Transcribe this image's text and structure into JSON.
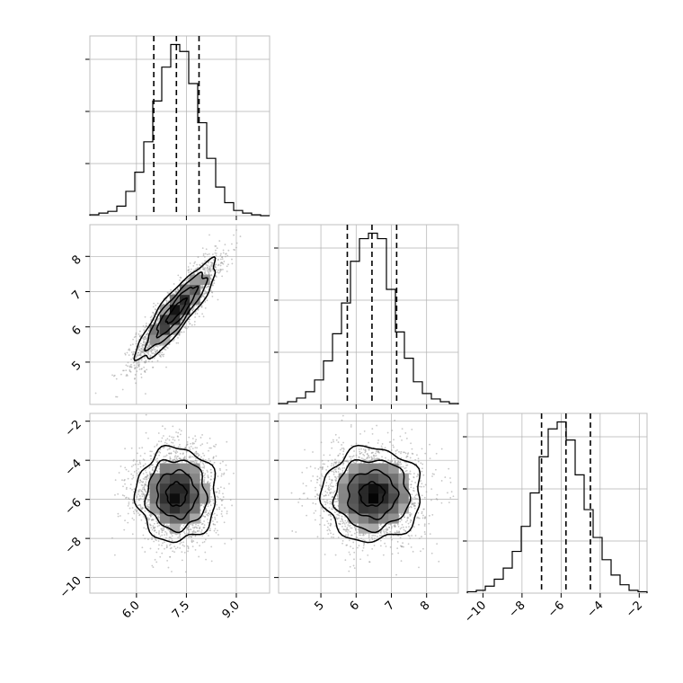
{
  "chart_data": {
    "type": "corner",
    "description": "Corner plot of three parameters: 1D marginal histograms on the diagonal with dashed quantile lines, 2D density histograms with scatter points and contours below the diagonal.",
    "parameters": [
      {
        "name": "",
        "range": [
          4.6,
          10.0
        ],
        "ticks": [
          6.0,
          7.5,
          9.0
        ],
        "tick_labels": [
          "6.0",
          "7.5",
          "9.0"
        ],
        "mean": 7.2,
        "sd": 0.6
      },
      {
        "name": "",
        "range": [
          3.8,
          8.9
        ],
        "ticks": [
          5,
          6,
          7,
          8
        ],
        "tick_labels": [
          "5",
          "6",
          "7",
          "8"
        ],
        "mean": 6.45,
        "sd": 0.7
      },
      {
        "name": "",
        "range": [
          -10.8,
          -1.6
        ],
        "ticks": [
          -10,
          -8,
          -6,
          -4,
          -2
        ],
        "tick_labels": [
          "−10",
          "−8",
          "−6",
          "−4",
          "−2"
        ],
        "mean": -5.75,
        "sd": 1.2
      }
    ],
    "quantile_lines": [
      {
        "param": 0,
        "values": [
          6.52,
          7.2,
          7.88
        ]
      },
      {
        "param": 1,
        "values": [
          5.75,
          6.45,
          7.15
        ]
      },
      {
        "param": 2,
        "values": [
          -7.0,
          -5.75,
          -4.5
        ]
      }
    ],
    "histograms": [
      {
        "param": 0,
        "bin_start": 4.6,
        "bin_width": 0.27,
        "counts": [
          1,
          3,
          5,
          11,
          28,
          50,
          85,
          132,
          171,
          197,
          189,
          152,
          107,
          66,
          33,
          15,
          6,
          3,
          1,
          0
        ]
      },
      {
        "param": 1,
        "bin_start": 3.8,
        "bin_width": 0.255,
        "counts": [
          1,
          3,
          7,
          14,
          27,
          48,
          78,
          112,
          158,
          183,
          189,
          183,
          127,
          80,
          51,
          25,
          12,
          6,
          3,
          1
        ]
      },
      {
        "param": 2,
        "bin_start": -10.8,
        "bin_width": 0.46,
        "counts": [
          1,
          2,
          5,
          10,
          18,
          30,
          48,
          72,
          98,
          118,
          123,
          110,
          85,
          60,
          40,
          24,
          13,
          6,
          2,
          1
        ]
      }
    ],
    "pairs": [
      {
        "x_param": 0,
        "y_param": 1,
        "correlation": 0.88
      },
      {
        "x_param": 0,
        "y_param": 2,
        "correlation": 0.0
      },
      {
        "x_param": 1,
        "y_param": 2,
        "correlation": 0.0
      }
    ],
    "contour_levels_sigma": [
      0.5,
      1.0,
      1.5,
      2.0
    ],
    "grid": true,
    "colors": {
      "line": "#000000",
      "scatter": "#9a9a9a",
      "grid": "#b0b0b0",
      "frame": "#bfbfbf"
    }
  }
}
